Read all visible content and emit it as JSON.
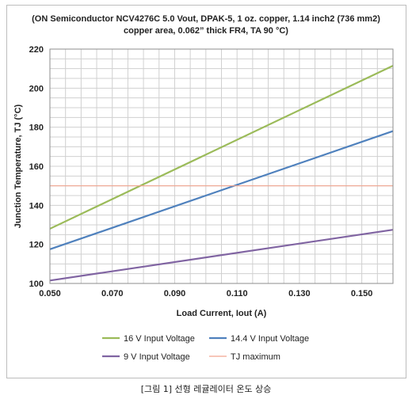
{
  "chart_data": {
    "type": "line",
    "title_line1": "(ON Semiconductor NCV4276C  5.0 Vout, DPAK-5, 1 oz. copper, 1.14 inch2 (736 mm2)",
    "title_line2": "copper area, 0.062”  thick FR4, TA 90 °C)",
    "xlabel": "Load Current, Iout (A)",
    "ylabel": "Junction Temperature, TJ (°C)",
    "xlim": [
      0.05,
      0.16
    ],
    "ylim": [
      100,
      220
    ],
    "x_ticks": [
      "0.050",
      "0.070",
      "0.090",
      "0.110",
      "0.130",
      "0.150"
    ],
    "y_ticks": [
      "100",
      "120",
      "140",
      "160",
      "180",
      "200",
      "220"
    ],
    "grid": true,
    "legend_position": "bottom",
    "series": [
      {
        "name": "16 V Input Voltage",
        "color": "#9bbb59",
        "x": [
          0.05,
          0.16
        ],
        "y": [
          128,
          211.5
        ]
      },
      {
        "name": "14.4 V Input Voltage",
        "color": "#4f81bd",
        "x": [
          0.05,
          0.16
        ],
        "y": [
          117.5,
          178
        ]
      },
      {
        "name": "9 V Input Voltage",
        "color": "#8064a2",
        "x": [
          0.05,
          0.16
        ],
        "y": [
          101.5,
          127.5
        ]
      },
      {
        "name": "TJ maximum",
        "color": "#f2a48f",
        "x": [
          0.05,
          0.16
        ],
        "y": [
          150,
          150
        ]
      }
    ]
  },
  "caption": "[그림 1] 선형 레귤레이터 온도 상승"
}
